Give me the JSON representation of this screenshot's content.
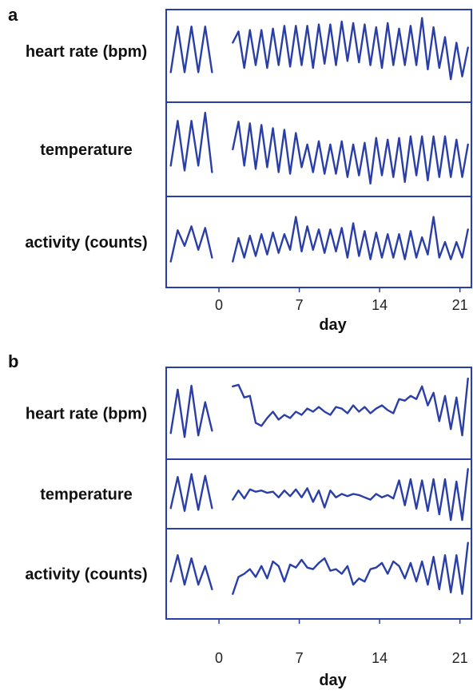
{
  "figure": {
    "line_color": "#2a3ea8"
  },
  "chart_data": [
    {
      "type": "line",
      "panel": "a",
      "title": "",
      "xlabel": "day",
      "xlim": [
        -4.6,
        22
      ],
      "xticks": [
        0,
        7,
        14,
        21
      ],
      "rows": [
        {
          "label": "heart rate (bpm)",
          "ylim": [
            0,
            1
          ],
          "segments": [
            {
              "x": [
                -4.2,
                -3.6,
                -3.0,
                -2.4,
                -1.8,
                -1.2,
                -0.6
              ],
              "y": [
                0.2,
                0.85,
                0.2,
                0.85,
                0.2,
                0.85,
                0.2
              ]
            },
            {
              "x": [
                1.2,
                1.7,
                2.2,
                2.7,
                3.2,
                3.7,
                4.2,
                4.7,
                5.2,
                5.7,
                6.2,
                6.7,
                7.2,
                7.7,
                8.2,
                8.7,
                9.2,
                9.7,
                10.2,
                10.7,
                11.2,
                11.7,
                12.2,
                12.7,
                13.2,
                13.7,
                14.2,
                14.7,
                15.2,
                15.7,
                16.2,
                16.7,
                17.2,
                17.7,
                18.2,
                18.7,
                19.2,
                19.7,
                20.2,
                20.7,
                21.2,
                21.7
              ],
              "y": [
                0.62,
                0.78,
                0.26,
                0.8,
                0.3,
                0.8,
                0.26,
                0.82,
                0.3,
                0.86,
                0.28,
                0.86,
                0.3,
                0.86,
                0.26,
                0.88,
                0.32,
                0.88,
                0.3,
                0.92,
                0.36,
                0.9,
                0.34,
                0.88,
                0.3,
                0.84,
                0.26,
                0.9,
                0.3,
                0.82,
                0.3,
                0.86,
                0.3,
                0.97,
                0.24,
                0.84,
                0.26,
                0.7,
                0.1,
                0.62,
                0.14,
                0.55
              ]
            }
          ]
        },
        {
          "label": "temperature",
          "ylim": [
            0,
            1
          ],
          "segments": [
            {
              "x": [
                -4.2,
                -3.6,
                -3.0,
                -2.4,
                -1.8,
                -1.2,
                -0.6
              ],
              "y": [
                0.3,
                0.85,
                0.24,
                0.85,
                0.3,
                0.95,
                0.22
              ]
            },
            {
              "x": [
                1.2,
                1.7,
                2.2,
                2.7,
                3.2,
                3.7,
                4.2,
                4.7,
                5.2,
                5.7,
                6.2,
                6.7,
                7.2,
                7.7,
                8.2,
                8.7,
                9.2,
                9.7,
                10.2,
                10.7,
                11.2,
                11.7,
                12.2,
                12.7,
                13.2,
                13.7,
                14.2,
                14.7,
                15.2,
                15.7,
                16.2,
                16.7,
                17.2,
                17.7,
                18.2,
                18.7,
                19.2,
                19.7,
                20.2,
                20.7,
                21.2,
                21.7
              ],
              "y": [
                0.5,
                0.84,
                0.3,
                0.82,
                0.26,
                0.8,
                0.28,
                0.76,
                0.22,
                0.74,
                0.2,
                0.7,
                0.28,
                0.56,
                0.22,
                0.6,
                0.2,
                0.56,
                0.2,
                0.6,
                0.16,
                0.56,
                0.18,
                0.58,
                0.08,
                0.64,
                0.18,
                0.62,
                0.16,
                0.64,
                0.1,
                0.66,
                0.18,
                0.66,
                0.12,
                0.66,
                0.16,
                0.66,
                0.16,
                0.62,
                0.16,
                0.56
              ]
            }
          ]
        },
        {
          "label": "activity (counts)",
          "ylim": [
            0,
            1
          ],
          "segments": [
            {
              "x": [
                -4.2,
                -3.6,
                -3.0,
                -2.4,
                -1.8,
                -1.2,
                -0.6
              ],
              "y": [
                0.25,
                0.65,
                0.45,
                0.7,
                0.4,
                0.68,
                0.3
              ]
            },
            {
              "x": [
                1.2,
                1.7,
                2.2,
                2.7,
                3.2,
                3.7,
                4.2,
                4.7,
                5.2,
                5.7,
                6.2,
                6.7,
                7.2,
                7.7,
                8.2,
                8.7,
                9.2,
                9.7,
                10.2,
                10.7,
                11.2,
                11.7,
                12.2,
                12.7,
                13.2,
                13.7,
                14.2,
                14.7,
                15.2,
                15.7,
                16.2,
                16.7,
                17.2,
                17.7,
                18.2,
                18.7,
                19.2,
                19.7,
                20.2,
                20.7,
                21.2,
                21.7
              ],
              "y": [
                0.25,
                0.55,
                0.3,
                0.58,
                0.32,
                0.6,
                0.34,
                0.62,
                0.36,
                0.6,
                0.4,
                0.82,
                0.38,
                0.7,
                0.4,
                0.66,
                0.36,
                0.66,
                0.38,
                0.68,
                0.3,
                0.74,
                0.32,
                0.64,
                0.28,
                0.62,
                0.3,
                0.6,
                0.3,
                0.6,
                0.28,
                0.64,
                0.3,
                0.56,
                0.34,
                0.82,
                0.3,
                0.5,
                0.28,
                0.5,
                0.3,
                0.66
              ]
            }
          ]
        }
      ]
    },
    {
      "type": "line",
      "panel": "b",
      "title": "",
      "xlabel": "day",
      "xlim": [
        -4.6,
        22
      ],
      "xticks": [
        0,
        7,
        14,
        21
      ],
      "rows": [
        {
          "label": "heart rate (bpm)",
          "ylim": [
            0,
            1
          ],
          "segments": [
            {
              "x": [
                -4.2,
                -3.6,
                -3.0,
                -2.4,
                -1.8,
                -1.2,
                -0.6
              ],
              "y": [
                0.25,
                0.8,
                0.2,
                0.85,
                0.22,
                0.64,
                0.28
              ]
            },
            {
              "x": [
                1.2,
                1.7,
                2.2,
                2.7,
                3.2,
                3.7,
                4.2,
                4.7,
                5.2,
                5.7,
                6.2,
                6.7,
                7.2,
                7.7,
                8.2,
                8.7,
                9.2,
                9.7,
                10.2,
                10.7,
                11.2,
                11.7,
                12.2,
                12.7,
                13.2,
                13.7,
                14.2,
                14.7,
                15.2,
                15.7,
                16.2,
                16.7,
                17.2,
                17.7,
                18.2,
                18.7,
                19.2,
                19.7,
                20.2,
                20.7,
                21.2,
                21.7
              ],
              "y": [
                0.84,
                0.86,
                0.7,
                0.72,
                0.38,
                0.34,
                0.44,
                0.52,
                0.42,
                0.48,
                0.44,
                0.52,
                0.48,
                0.56,
                0.52,
                0.58,
                0.52,
                0.48,
                0.58,
                0.56,
                0.5,
                0.6,
                0.52,
                0.58,
                0.5,
                0.56,
                0.6,
                0.54,
                0.5,
                0.68,
                0.66,
                0.72,
                0.68,
                0.84,
                0.6,
                0.76,
                0.4,
                0.72,
                0.3,
                0.7,
                0.22,
                0.94
              ]
            }
          ]
        },
        {
          "label": "temperature",
          "ylim": [
            0,
            1
          ],
          "segments": [
            {
              "x": [
                -4.2,
                -3.6,
                -3.0,
                -2.4,
                -1.8,
                -1.2,
                -0.6
              ],
              "y": [
                0.25,
                0.8,
                0.2,
                0.85,
                0.22,
                0.82,
                0.25
              ]
            },
            {
              "x": [
                1.2,
                1.7,
                2.2,
                2.7,
                3.2,
                3.7,
                4.2,
                4.7,
                5.2,
                5.7,
                6.2,
                6.7,
                7.2,
                7.7,
                8.2,
                8.7,
                9.2,
                9.7,
                10.2,
                10.7,
                11.2,
                11.7,
                12.2,
                12.7,
                13.2,
                13.7,
                14.2,
                14.7,
                15.2,
                15.7,
                16.2,
                16.7,
                17.2,
                17.7,
                18.2,
                18.7,
                19.2,
                19.7,
                20.2,
                20.7,
                21.2,
                21.7
              ],
              "y": [
                0.4,
                0.56,
                0.42,
                0.58,
                0.54,
                0.56,
                0.52,
                0.54,
                0.44,
                0.56,
                0.46,
                0.58,
                0.44,
                0.6,
                0.36,
                0.56,
                0.26,
                0.56,
                0.44,
                0.5,
                0.46,
                0.5,
                0.48,
                0.44,
                0.4,
                0.5,
                0.44,
                0.48,
                0.42,
                0.74,
                0.3,
                0.76,
                0.24,
                0.74,
                0.2,
                0.76,
                0.14,
                0.76,
                0.04,
                0.72,
                0.04,
                0.94
              ]
            }
          ]
        },
        {
          "label": "activity (counts)",
          "ylim": [
            0,
            1
          ],
          "segments": [
            {
              "x": [
                -4.2,
                -3.6,
                -3.0,
                -2.4,
                -1.8,
                -1.2,
                -0.6
              ],
              "y": [
                0.4,
                0.74,
                0.36,
                0.7,
                0.36,
                0.6,
                0.3
              ]
            },
            {
              "x": [
                1.2,
                1.7,
                2.2,
                2.7,
                3.2,
                3.7,
                4.2,
                4.7,
                5.2,
                5.7,
                6.2,
                6.7,
                7.2,
                7.7,
                8.2,
                8.7,
                9.2,
                9.7,
                10.2,
                10.7,
                11.2,
                11.7,
                12.2,
                12.7,
                13.2,
                13.7,
                14.2,
                14.7,
                15.2,
                15.7,
                16.2,
                16.7,
                17.2,
                17.7,
                18.2,
                18.7,
                19.2,
                19.7,
                20.2,
                20.7,
                21.2,
                21.7
              ],
              "y": [
                0.24,
                0.46,
                0.5,
                0.56,
                0.46,
                0.6,
                0.44,
                0.66,
                0.6,
                0.4,
                0.62,
                0.58,
                0.68,
                0.58,
                0.56,
                0.64,
                0.7,
                0.54,
                0.56,
                0.5,
                0.6,
                0.36,
                0.44,
                0.4,
                0.56,
                0.58,
                0.64,
                0.5,
                0.66,
                0.6,
                0.44,
                0.64,
                0.4,
                0.66,
                0.36,
                0.72,
                0.3,
                0.74,
                0.26,
                0.74,
                0.24,
                0.9
              ]
            }
          ]
        }
      ]
    }
  ]
}
